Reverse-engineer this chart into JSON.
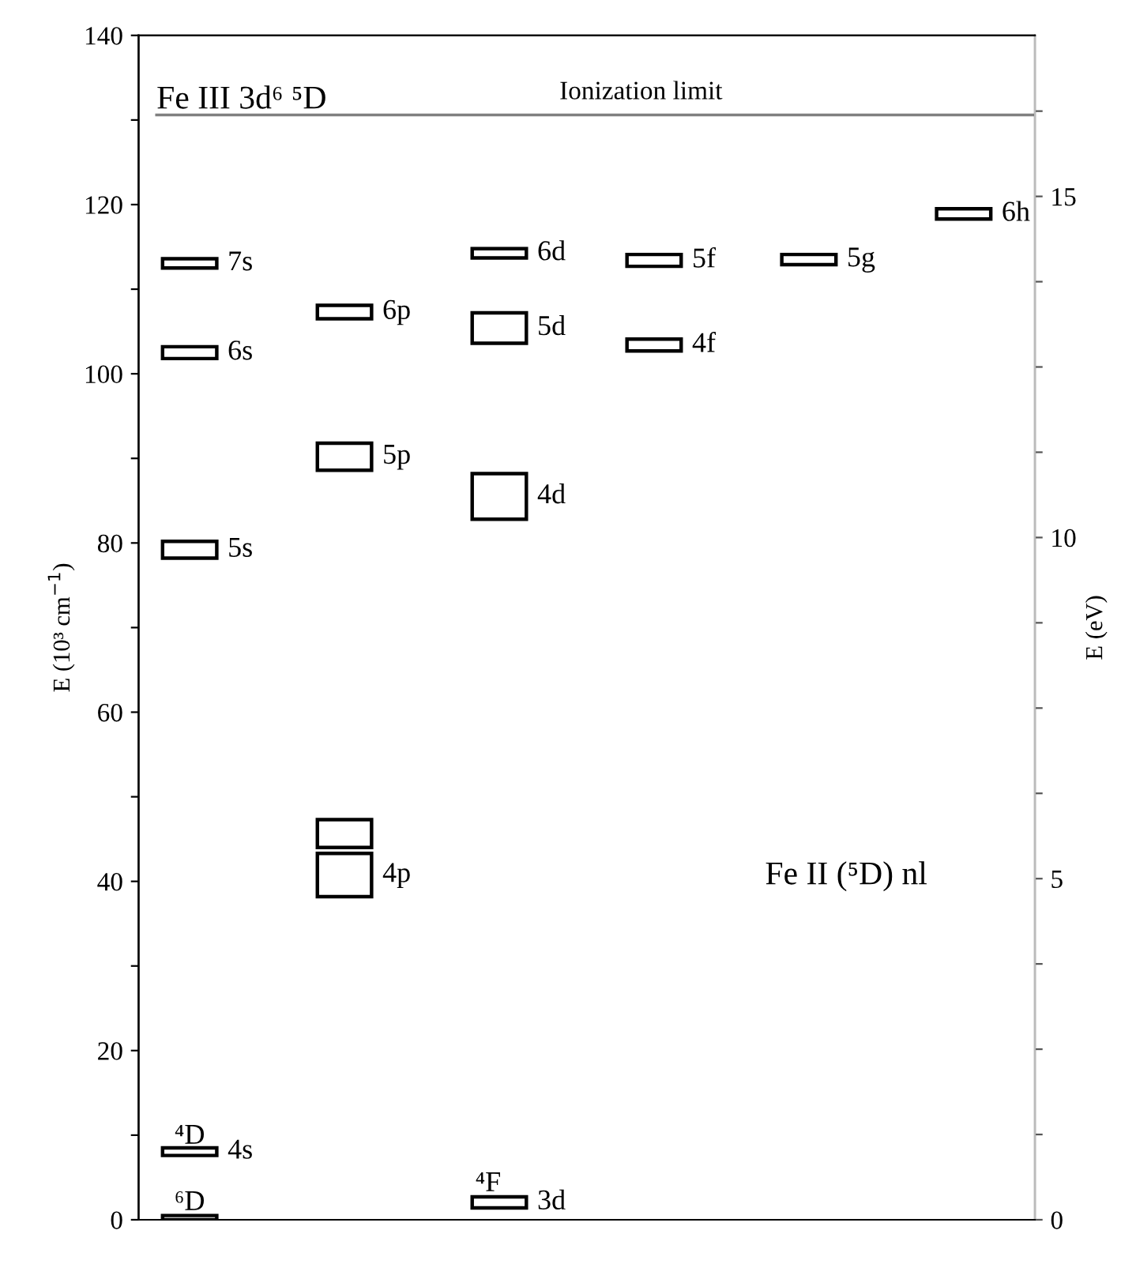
{
  "chart_data": {
    "type": "bar",
    "categories": [
      null,
      null,
      null,
      null,
      null,
      null
    ],
    "ylabel": "E (10³ cm$^{−1}$)",
    "y2label": "E (eV)",
    "series": [
      {
        "name": "7s",
        "color": "#000000",
        "values": [
          1.1,
          null,
          null,
          null,
          null,
          null
        ],
        "base": [
          112.5,
          null,
          null,
          null,
          null,
          null
        ]
      },
      {
        "name": "6s",
        "color": "#000000",
        "values": [
          1.4,
          null,
          null,
          null,
          null,
          null
        ],
        "base": [
          101.8,
          null,
          null,
          null,
          null,
          null
        ]
      },
      {
        "name": "5s",
        "color": "#000000",
        "values": [
          2.0,
          null,
          null,
          null,
          null,
          null
        ],
        "base": [
          78.2,
          null,
          null,
          null,
          null,
          null
        ]
      },
      {
        "name": "4s",
        "color": "#000000",
        "values": [
          0.9,
          null,
          null,
          null,
          null,
          null
        ],
        "base": [
          7.6,
          null,
          null,
          null,
          null,
          null
        ]
      },
      {
        "color": "#000000",
        "values": [
          0.5,
          null,
          null,
          null,
          null,
          null
        ],
        "base": [
          0,
          null,
          null,
          null,
          null,
          null
        ]
      },
      {
        "name": "6p",
        "color": "#000000",
        "values": [
          null,
          1.6,
          null,
          null,
          null,
          null
        ],
        "base": [
          null,
          106.5,
          null,
          null,
          null,
          null
        ]
      },
      {
        "name": "5p",
        "color": "#000000",
        "values": [
          null,
          3.2,
          null,
          null,
          null,
          null
        ],
        "base": [
          null,
          88.6,
          null,
          null,
          null,
          null
        ]
      },
      {
        "color": "#000000",
        "values": [
          null,
          3.3,
          null,
          null,
          null,
          null
        ],
        "base": [
          null,
          44.0,
          null,
          null,
          null,
          null
        ]
      },
      {
        "name": "4p",
        "color": "#000000",
        "values": [
          null,
          5.1,
          null,
          null,
          null,
          null
        ],
        "base": [
          null,
          38.2,
          null,
          null,
          null,
          null
        ]
      },
      {
        "name": "6d",
        "color": "#000000",
        "values": [
          null,
          null,
          1.1,
          null,
          null,
          null
        ],
        "base": [
          null,
          null,
          113.7,
          null,
          null,
          null
        ]
      },
      {
        "name": "5d",
        "color": "#000000",
        "values": [
          null,
          null,
          3.6,
          null,
          null,
          null
        ],
        "base": [
          null,
          null,
          103.6,
          null,
          null,
          null
        ]
      },
      {
        "name": "4d",
        "color": "#000000",
        "values": [
          null,
          null,
          5.4,
          null,
          null,
          null
        ],
        "base": [
          null,
          null,
          82.8,
          null,
          null,
          null
        ]
      },
      {
        "name": "3d",
        "color": "#000000",
        "values": [
          null,
          null,
          1.3,
          null,
          null,
          null
        ],
        "base": [
          null,
          null,
          1.4,
          null,
          null,
          null
        ]
      },
      {
        "name": "5f",
        "color": "#000000",
        "values": [
          null,
          null,
          null,
          1.4,
          null,
          null
        ],
        "base": [
          null,
          null,
          null,
          112.7,
          null,
          null
        ]
      },
      {
        "name": "4f",
        "color": "#000000",
        "values": [
          null,
          null,
          null,
          1.4,
          null,
          null
        ],
        "base": [
          null,
          null,
          null,
          102.7,
          null,
          null
        ]
      },
      {
        "name": "5g",
        "color": "#000000",
        "values": [
          null,
          null,
          null,
          null,
          1.2,
          null
        ],
        "base": [
          null,
          null,
          null,
          null,
          112.9,
          null
        ]
      },
      {
        "name": "6h",
        "color": "#000000",
        "values": [
          null,
          null,
          null,
          null,
          null,
          1.2
        ],
        "base": [
          null,
          null,
          null,
          null,
          null,
          118.3
        ]
      }
    ],
    "ylim": [
      0,
      140
    ],
    "yticks": [
      0,
      {
        "value": 10,
        "label": null
      },
      20,
      {
        "value": 30,
        "label": null
      },
      40,
      {
        "value": 50,
        "label": null
      },
      60,
      {
        "value": 70,
        "label": null
      },
      80,
      {
        "value": 90,
        "label": null
      },
      100,
      {
        "value": 110,
        "label": null
      },
      120,
      {
        "value": 130,
        "label": null
      },
      140
    ],
    "y2lim": [
      0,
      17.36
    ],
    "y2ticks": [
      0,
      {
        "value": 1.25,
        "label": null
      },
      {
        "value": 2.5,
        "label": null
      },
      {
        "value": 3.75,
        "label": null
      },
      5,
      {
        "value": 6.25,
        "label": null
      },
      {
        "value": 7.5,
        "label": null
      },
      {
        "value": 8.75,
        "label": null
      },
      10,
      {
        "value": 11.25,
        "label": null
      },
      {
        "value": 12.5,
        "label": null
      },
      {
        "value": 13.75,
        "label": null
      },
      15,
      {
        "value": 16.25,
        "label": null
      }
    ],
    "ref_lines": [
      {
        "axis": "y",
        "value": 130.6,
        "label": "Ionization limit",
        "color": "#808080"
      }
    ],
    "annotations": [
      "Fe III 3d⁶ ⁵D",
      "Fe II (⁵D) nl",
      "⁴D",
      "⁶D",
      "⁴F"
    ],
    "grid": false,
    "legend": false
  }
}
